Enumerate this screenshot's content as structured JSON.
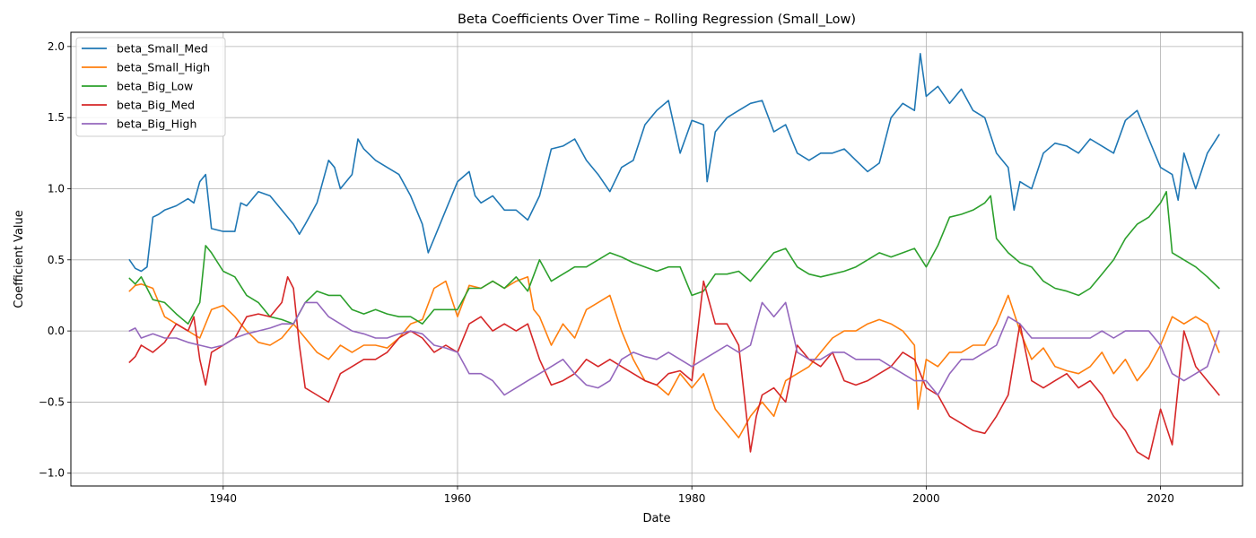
{
  "chart_data": {
    "type": "line",
    "title": "Beta Coefficients Over Time – Rolling Regression (Small_Low)",
    "xlabel": "Date",
    "ylabel": "Coefficient Value",
    "xlim": [
      1927,
      2027
    ],
    "ylim": [
      -1.09,
      2.1
    ],
    "xticks": [
      1940,
      1960,
      1980,
      2000,
      2020
    ],
    "yticks": [
      -1.0,
      -0.5,
      0.0,
      0.5,
      1.0,
      1.5,
      2.0
    ],
    "ytick_labels": [
      "−1.0",
      "−0.5",
      "0.0",
      "0.5",
      "1.0",
      "1.5",
      "2.0"
    ],
    "grid": true,
    "legend_position": "upper-left",
    "series": [
      {
        "name": "beta_Small_Med",
        "color": "#1f77b4",
        "x": [
          1932.0,
          1932.5,
          1933.0,
          1933.5,
          1934.0,
          1934.5,
          1935.0,
          1936.0,
          1937.0,
          1937.5,
          1938.0,
          1938.5,
          1939.0,
          1940.0,
          1941.0,
          1941.5,
          1942.0,
          1943.0,
          1944.0,
          1945.0,
          1946.0,
          1946.5,
          1947.0,
          1948.0,
          1949.0,
          1949.5,
          1950.0,
          1951.0,
          1951.5,
          1952.0,
          1953.0,
          1954.0,
          1955.0,
          1956.0,
          1957.0,
          1957.5,
          1958.0,
          1959.0,
          1960.0,
          1961.0,
          1961.5,
          1962.0,
          1963.0,
          1964.0,
          1965.0,
          1966.0,
          1967.0,
          1968.0,
          1969.0,
          1970.0,
          1971.0,
          1972.0,
          1973.0,
          1974.0,
          1975.0,
          1976.0,
          1977.0,
          1978.0,
          1979.0,
          1980.0,
          1981.0,
          1981.3,
          1982.0,
          1983.0,
          1984.0,
          1985.0,
          1986.0,
          1987.0,
          1988.0,
          1989.0,
          1990.0,
          1991.0,
          1992.0,
          1993.0,
          1994.0,
          1995.0,
          1996.0,
          1997.0,
          1998.0,
          1999.0,
          1999.5,
          2000.0,
          2001.0,
          2002.0,
          2003.0,
          2004.0,
          2005.0,
          2006.0,
          2007.0,
          2007.5,
          2008.0,
          2009.0,
          2010.0,
          2011.0,
          2012.0,
          2013.0,
          2014.0,
          2015.0,
          2016.0,
          2017.0,
          2018.0,
          2019.0,
          2020.0,
          2021.0,
          2021.5,
          2022.0,
          2023.0,
          2024.0,
          2025.0
        ],
        "y": [
          0.5,
          0.44,
          0.42,
          0.45,
          0.8,
          0.82,
          0.85,
          0.88,
          0.93,
          0.9,
          1.05,
          1.1,
          0.72,
          0.7,
          0.7,
          0.9,
          0.88,
          0.98,
          0.95,
          0.85,
          0.75,
          0.68,
          0.75,
          0.9,
          1.2,
          1.15,
          1.0,
          1.1,
          1.35,
          1.28,
          1.2,
          1.15,
          1.1,
          0.95,
          0.75,
          0.55,
          0.65,
          0.85,
          1.05,
          1.12,
          0.95,
          0.9,
          0.95,
          0.85,
          0.85,
          0.78,
          0.95,
          1.28,
          1.3,
          1.35,
          1.2,
          1.1,
          0.98,
          1.15,
          1.2,
          1.45,
          1.55,
          1.62,
          1.25,
          1.48,
          1.45,
          1.05,
          1.4,
          1.5,
          1.55,
          1.6,
          1.62,
          1.4,
          1.45,
          1.25,
          1.2,
          1.25,
          1.25,
          1.28,
          1.2,
          1.12,
          1.18,
          1.5,
          1.6,
          1.55,
          1.95,
          1.65,
          1.72,
          1.6,
          1.7,
          1.55,
          1.5,
          1.25,
          1.15,
          0.85,
          1.05,
          1.0,
          1.25,
          1.32,
          1.3,
          1.25,
          1.35,
          1.3,
          1.25,
          1.48,
          1.55,
          1.35,
          1.15,
          1.1,
          0.92,
          1.25,
          1.0,
          1.25,
          1.38
        ]
      },
      {
        "name": "beta_Small_High",
        "color": "#ff7f0e",
        "x": [
          1932.0,
          1932.5,
          1933.0,
          1934.0,
          1935.0,
          1936.0,
          1937.0,
          1938.0,
          1939.0,
          1940.0,
          1941.0,
          1942.0,
          1943.0,
          1944.0,
          1945.0,
          1946.0,
          1947.0,
          1948.0,
          1949.0,
          1950.0,
          1951.0,
          1952.0,
          1953.0,
          1954.0,
          1955.0,
          1956.0,
          1957.0,
          1958.0,
          1959.0,
          1960.0,
          1961.0,
          1962.0,
          1963.0,
          1964.0,
          1965.0,
          1966.0,
          1966.5,
          1967.0,
          1968.0,
          1969.0,
          1970.0,
          1971.0,
          1972.0,
          1973.0,
          1974.0,
          1975.0,
          1976.0,
          1977.0,
          1978.0,
          1979.0,
          1980.0,
          1981.0,
          1982.0,
          1983.0,
          1984.0,
          1985.0,
          1986.0,
          1987.0,
          1988.0,
          1989.0,
          1990.0,
          1991.0,
          1992.0,
          1993.0,
          1994.0,
          1995.0,
          1996.0,
          1997.0,
          1998.0,
          1999.0,
          1999.3,
          2000.0,
          2001.0,
          2002.0,
          2003.0,
          2004.0,
          2005.0,
          2006.0,
          2007.0,
          2008.0,
          2009.0,
          2010.0,
          2011.0,
          2012.0,
          2013.0,
          2014.0,
          2015.0,
          2016.0,
          2017.0,
          2018.0,
          2019.0,
          2020.0,
          2021.0,
          2022.0,
          2023.0,
          2024.0,
          2025.0
        ],
        "y": [
          0.28,
          0.32,
          0.33,
          0.3,
          0.1,
          0.05,
          0.0,
          -0.05,
          0.15,
          0.18,
          0.1,
          0.0,
          -0.08,
          -0.1,
          -0.05,
          0.05,
          -0.05,
          -0.15,
          -0.2,
          -0.1,
          -0.15,
          -0.1,
          -0.1,
          -0.12,
          -0.05,
          0.05,
          0.08,
          0.3,
          0.35,
          0.1,
          0.32,
          0.3,
          0.35,
          0.3,
          0.35,
          0.38,
          0.15,
          0.1,
          -0.1,
          0.05,
          -0.05,
          0.15,
          0.2,
          0.25,
          0.0,
          -0.2,
          -0.35,
          -0.38,
          -0.45,
          -0.3,
          -0.4,
          -0.3,
          -0.55,
          -0.65,
          -0.75,
          -0.6,
          -0.5,
          -0.6,
          -0.35,
          -0.3,
          -0.25,
          -0.15,
          -0.05,
          0.0,
          0.0,
          0.05,
          0.08,
          0.05,
          0.0,
          -0.1,
          -0.55,
          -0.2,
          -0.25,
          -0.15,
          -0.15,
          -0.1,
          -0.1,
          0.05,
          0.25,
          0.0,
          -0.2,
          -0.12,
          -0.25,
          -0.28,
          -0.3,
          -0.25,
          -0.15,
          -0.3,
          -0.2,
          -0.35,
          -0.25,
          -0.1,
          0.1,
          0.05,
          0.1,
          0.05,
          -0.15
        ]
      },
      {
        "name": "beta_Big_Low",
        "color": "#2ca02c",
        "x": [
          1932.0,
          1932.5,
          1933.0,
          1934.0,
          1935.0,
          1936.0,
          1937.0,
          1938.0,
          1938.5,
          1939.0,
          1940.0,
          1941.0,
          1942.0,
          1943.0,
          1944.0,
          1945.0,
          1946.0,
          1947.0,
          1948.0,
          1949.0,
          1950.0,
          1951.0,
          1952.0,
          1953.0,
          1954.0,
          1955.0,
          1956.0,
          1957.0,
          1958.0,
          1959.0,
          1960.0,
          1961.0,
          1962.0,
          1963.0,
          1964.0,
          1965.0,
          1966.0,
          1967.0,
          1968.0,
          1969.0,
          1970.0,
          1971.0,
          1972.0,
          1973.0,
          1974.0,
          1975.0,
          1976.0,
          1977.0,
          1978.0,
          1979.0,
          1980.0,
          1981.0,
          1982.0,
          1983.0,
          1984.0,
          1985.0,
          1986.0,
          1987.0,
          1988.0,
          1989.0,
          1990.0,
          1991.0,
          1992.0,
          1993.0,
          1994.0,
          1995.0,
          1996.0,
          1997.0,
          1998.0,
          1999.0,
          2000.0,
          2001.0,
          2002.0,
          2003.0,
          2004.0,
          2005.0,
          2005.5,
          2006.0,
          2007.0,
          2008.0,
          2009.0,
          2010.0,
          2011.0,
          2012.0,
          2013.0,
          2014.0,
          2015.0,
          2016.0,
          2017.0,
          2018.0,
          2019.0,
          2020.0,
          2020.5,
          2021.0,
          2022.0,
          2023.0,
          2024.0,
          2025.0
        ],
        "y": [
          0.37,
          0.33,
          0.38,
          0.22,
          0.2,
          0.12,
          0.05,
          0.2,
          0.6,
          0.55,
          0.42,
          0.38,
          0.25,
          0.2,
          0.1,
          0.08,
          0.05,
          0.2,
          0.28,
          0.25,
          0.25,
          0.15,
          0.12,
          0.15,
          0.12,
          0.1,
          0.1,
          0.05,
          0.15,
          0.15,
          0.15,
          0.3,
          0.3,
          0.35,
          0.3,
          0.38,
          0.28,
          0.5,
          0.35,
          0.4,
          0.45,
          0.45,
          0.5,
          0.55,
          0.52,
          0.48,
          0.45,
          0.42,
          0.45,
          0.45,
          0.25,
          0.28,
          0.4,
          0.4,
          0.42,
          0.35,
          0.45,
          0.55,
          0.58,
          0.45,
          0.4,
          0.38,
          0.4,
          0.42,
          0.45,
          0.5,
          0.55,
          0.52,
          0.55,
          0.58,
          0.45,
          0.6,
          0.8,
          0.82,
          0.85,
          0.9,
          0.95,
          0.65,
          0.55,
          0.48,
          0.45,
          0.35,
          0.3,
          0.28,
          0.25,
          0.3,
          0.4,
          0.5,
          0.65,
          0.75,
          0.8,
          0.9,
          0.98,
          0.55,
          0.5,
          0.45,
          0.38,
          0.3
        ]
      },
      {
        "name": "beta_Big_Med",
        "color": "#d62728",
        "x": [
          1932.0,
          1932.5,
          1933.0,
          1934.0,
          1935.0,
          1936.0,
          1937.0,
          1937.5,
          1938.0,
          1938.5,
          1939.0,
          1940.0,
          1941.0,
          1942.0,
          1943.0,
          1944.0,
          1945.0,
          1945.5,
          1946.0,
          1946.5,
          1947.0,
          1948.0,
          1949.0,
          1950.0,
          1951.0,
          1952.0,
          1953.0,
          1954.0,
          1955.0,
          1956.0,
          1957.0,
          1958.0,
          1959.0,
          1960.0,
          1961.0,
          1962.0,
          1963.0,
          1964.0,
          1965.0,
          1966.0,
          1967.0,
          1968.0,
          1969.0,
          1970.0,
          1971.0,
          1972.0,
          1973.0,
          1974.0,
          1975.0,
          1976.0,
          1977.0,
          1978.0,
          1979.0,
          1980.0,
          1980.5,
          1981.0,
          1982.0,
          1983.0,
          1984.0,
          1985.0,
          1985.5,
          1986.0,
          1987.0,
          1988.0,
          1989.0,
          1990.0,
          1991.0,
          1992.0,
          1993.0,
          1994.0,
          1995.0,
          1996.0,
          1997.0,
          1998.0,
          1999.0,
          2000.0,
          2001.0,
          2002.0,
          2003.0,
          2004.0,
          2005.0,
          2006.0,
          2007.0,
          2008.0,
          2009.0,
          2010.0,
          2011.0,
          2012.0,
          2013.0,
          2014.0,
          2015.0,
          2016.0,
          2017.0,
          2018.0,
          2019.0,
          2020.0,
          2021.0,
          2022.0,
          2023.0,
          2024.0,
          2025.0
        ],
        "y": [
          -0.22,
          -0.18,
          -0.1,
          -0.15,
          -0.08,
          0.05,
          0.0,
          0.1,
          -0.2,
          -0.38,
          -0.15,
          -0.1,
          -0.05,
          0.1,
          0.12,
          0.1,
          0.2,
          0.38,
          0.3,
          -0.1,
          -0.4,
          -0.45,
          -0.5,
          -0.3,
          -0.25,
          -0.2,
          -0.2,
          -0.15,
          -0.05,
          0.0,
          -0.05,
          -0.15,
          -0.1,
          -0.15,
          0.05,
          0.1,
          0.0,
          0.05,
          0.0,
          0.05,
          -0.2,
          -0.38,
          -0.35,
          -0.3,
          -0.2,
          -0.25,
          -0.2,
          -0.25,
          -0.3,
          -0.35,
          -0.38,
          -0.3,
          -0.28,
          -0.35,
          0.0,
          0.35,
          0.05,
          0.05,
          -0.1,
          -0.85,
          -0.6,
          -0.45,
          -0.4,
          -0.5,
          -0.1,
          -0.2,
          -0.25,
          -0.15,
          -0.35,
          -0.38,
          -0.35,
          -0.3,
          -0.25,
          -0.15,
          -0.2,
          -0.4,
          -0.45,
          -0.6,
          -0.65,
          -0.7,
          -0.72,
          -0.6,
          -0.45,
          0.05,
          -0.35,
          -0.4,
          -0.35,
          -0.3,
          -0.4,
          -0.35,
          -0.45,
          -0.6,
          -0.7,
          -0.85,
          -0.9,
          -0.55,
          -0.8,
          0.0,
          -0.25,
          -0.35,
          -0.45
        ]
      },
      {
        "name": "beta_Big_High",
        "color": "#9467bd",
        "x": [
          1932.0,
          1932.5,
          1933.0,
          1934.0,
          1935.0,
          1936.0,
          1937.0,
          1938.0,
          1939.0,
          1940.0,
          1941.0,
          1942.0,
          1943.0,
          1944.0,
          1945.0,
          1946.0,
          1947.0,
          1948.0,
          1949.0,
          1950.0,
          1951.0,
          1952.0,
          1953.0,
          1954.0,
          1955.0,
          1956.0,
          1957.0,
          1958.0,
          1959.0,
          1960.0,
          1961.0,
          1962.0,
          1963.0,
          1964.0,
          1965.0,
          1966.0,
          1967.0,
          1968.0,
          1969.0,
          1970.0,
          1971.0,
          1972.0,
          1973.0,
          1974.0,
          1975.0,
          1976.0,
          1977.0,
          1978.0,
          1979.0,
          1980.0,
          1981.0,
          1982.0,
          1983.0,
          1984.0,
          1985.0,
          1986.0,
          1987.0,
          1988.0,
          1989.0,
          1990.0,
          1991.0,
          1992.0,
          1993.0,
          1994.0,
          1995.0,
          1996.0,
          1997.0,
          1998.0,
          1999.0,
          2000.0,
          2001.0,
          2002.0,
          2003.0,
          2004.0,
          2005.0,
          2006.0,
          2007.0,
          2008.0,
          2009.0,
          2010.0,
          2011.0,
          2012.0,
          2013.0,
          2014.0,
          2015.0,
          2016.0,
          2017.0,
          2018.0,
          2019.0,
          2020.0,
          2021.0,
          2022.0,
          2023.0,
          2024.0,
          2025.0
        ],
        "y": [
          0.0,
          0.02,
          -0.05,
          -0.02,
          -0.05,
          -0.05,
          -0.08,
          -0.1,
          -0.12,
          -0.1,
          -0.05,
          -0.02,
          0.0,
          0.02,
          0.05,
          0.05,
          0.2,
          0.2,
          0.1,
          0.05,
          0.0,
          -0.02,
          -0.05,
          -0.05,
          -0.02,
          0.0,
          -0.02,
          -0.1,
          -0.12,
          -0.15,
          -0.3,
          -0.3,
          -0.35,
          -0.45,
          -0.4,
          -0.35,
          -0.3,
          -0.25,
          -0.2,
          -0.3,
          -0.38,
          -0.4,
          -0.35,
          -0.2,
          -0.15,
          -0.18,
          -0.2,
          -0.15,
          -0.2,
          -0.25,
          -0.2,
          -0.15,
          -0.1,
          -0.15,
          -0.1,
          0.2,
          0.1,
          0.2,
          -0.15,
          -0.2,
          -0.2,
          -0.15,
          -0.15,
          -0.2,
          -0.2,
          -0.2,
          -0.25,
          -0.3,
          -0.35,
          -0.35,
          -0.45,
          -0.3,
          -0.2,
          -0.2,
          -0.15,
          -0.1,
          0.1,
          0.05,
          -0.05,
          -0.05,
          -0.05,
          -0.05,
          -0.05,
          -0.05,
          0.0,
          -0.05,
          0.0,
          0.0,
          0.0,
          -0.1,
          -0.3,
          -0.35,
          -0.3,
          -0.25,
          0.0
        ]
      }
    ]
  }
}
